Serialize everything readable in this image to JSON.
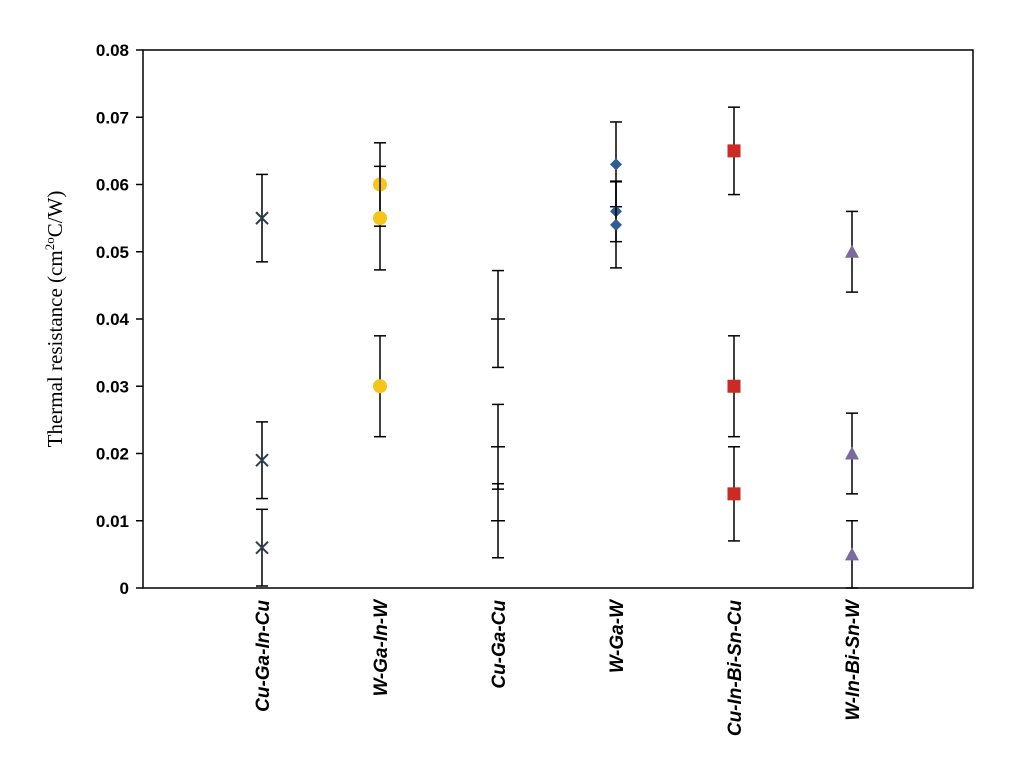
{
  "chart_data": {
    "type": "scatter",
    "title": "",
    "xlabel": "",
    "ylabel": "Thermal resistance (cm²°C/W)",
    "ylabel_parts": {
      "before": "Thermal resistance (cm",
      "sup": "2o",
      "after": "C/W)"
    },
    "ylim": [
      0,
      0.08
    ],
    "yticks": [
      "0",
      "0.01",
      "0.02",
      "0.03",
      "0.04",
      "0.05",
      "0.06",
      "0.07",
      "0.08"
    ],
    "ytick_values": [
      0,
      0.01,
      0.02,
      0.03,
      0.04,
      0.05,
      0.06,
      0.07,
      0.08
    ],
    "grid": false,
    "categories": [
      "Cu-Ga-In-Cu",
      "W-Ga-In-W",
      "Cu-Ga-Cu",
      "W-Ga-W",
      "Cu-In-Bi-Sn-Cu",
      "W-In-Bi-Sn-W"
    ],
    "series": [
      {
        "category": "Cu-Ga-In-Cu",
        "marker": "x",
        "color": "#2f3f4f",
        "values": [
          0.055,
          0.019,
          0.006
        ],
        "err": [
          0.0065,
          0.0057,
          0.0057
        ]
      },
      {
        "category": "W-Ga-In-W",
        "marker": "circle",
        "color": "#f5c518",
        "values": [
          0.06,
          0.055,
          0.03
        ],
        "err": [
          0.0062,
          0.0077,
          0.0075
        ]
      },
      {
        "category": "Cu-Ga-Cu",
        "marker": "dash",
        "color": "#000000",
        "values": [
          0.04,
          0.021,
          0.01
        ],
        "err": [
          0.0072,
          0.0063,
          0.0055
        ]
      },
      {
        "category": "W-Ga-W",
        "marker": "diamond",
        "color": "#2e5d8e",
        "values": [
          0.063,
          0.056,
          0.054
        ],
        "err": [
          0.0063,
          0.0045,
          0.0064
        ]
      },
      {
        "category": "Cu-In-Bi-Sn-Cu",
        "marker": "square",
        "color": "#cc2a24",
        "values": [
          0.065,
          0.03,
          0.014
        ],
        "err": [
          0.0065,
          0.0075,
          0.007
        ]
      },
      {
        "category": "W-In-Bi-Sn-W",
        "marker": "triangle",
        "color": "#7a6aa0",
        "values": [
          0.05,
          0.02,
          0.005
        ],
        "err": [
          0.006,
          0.006,
          0.005
        ]
      }
    ]
  }
}
